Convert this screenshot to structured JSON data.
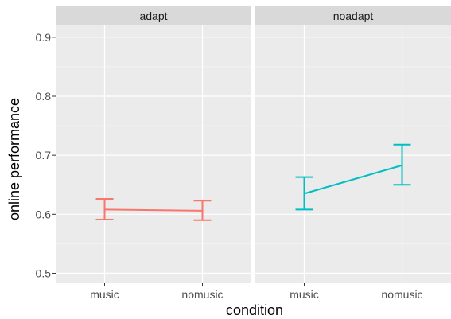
{
  "chart_data": {
    "type": "line",
    "xlabel": "condition",
    "ylabel": "online performance",
    "categories": [
      "music",
      "nomusic"
    ],
    "ylim": [
      0.48,
      0.92
    ],
    "yticks": [
      0.5,
      0.6,
      0.7,
      0.8,
      0.9
    ],
    "ytick_labels": [
      "0.5",
      "0.6",
      "0.7",
      "0.8",
      "0.9"
    ],
    "grid": true,
    "legend": "none",
    "panels": [
      {
        "label": "adapt",
        "color": "#F8766D",
        "points": [
          {
            "x": "music",
            "y": 0.608,
            "ymin": 0.591,
            "ymax": 0.626
          },
          {
            "x": "nomusic",
            "y": 0.606,
            "ymin": 0.59,
            "ymax": 0.623
          }
        ]
      },
      {
        "label": "noadapt",
        "color": "#00BFC4",
        "points": [
          {
            "x": "music",
            "y": 0.635,
            "ymin": 0.608,
            "ymax": 0.663
          },
          {
            "x": "nomusic",
            "y": 0.683,
            "ymin": 0.65,
            "ymax": 0.718
          }
        ]
      }
    ]
  }
}
